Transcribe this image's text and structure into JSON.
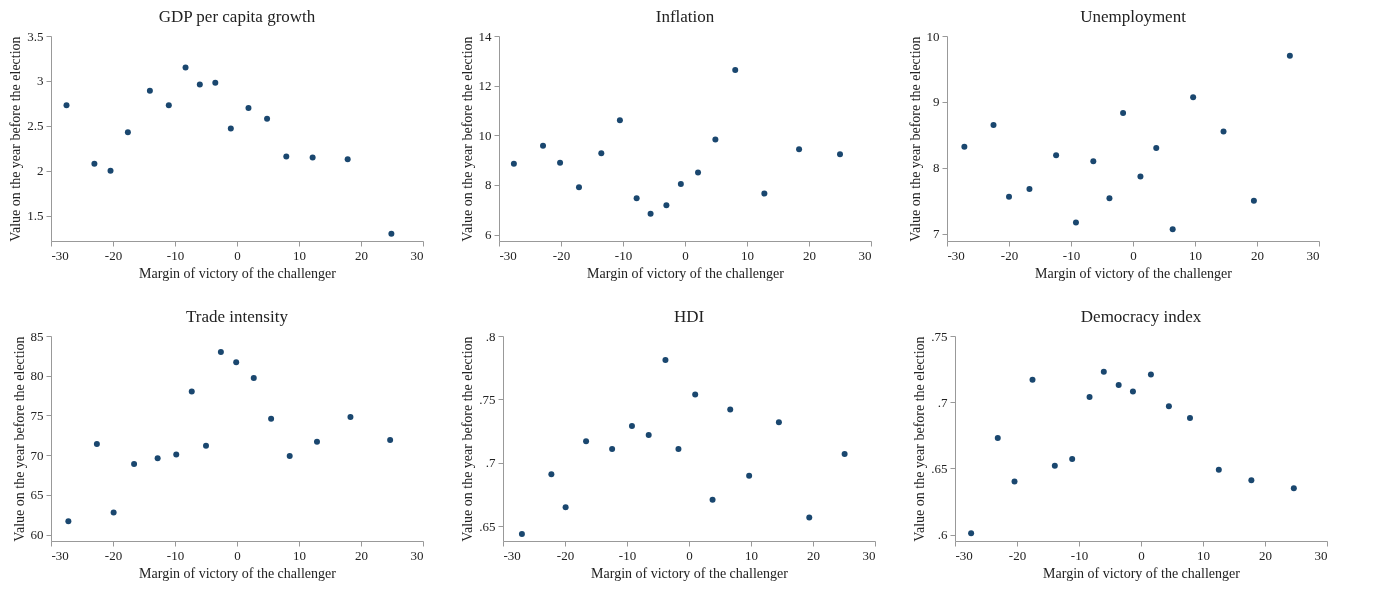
{
  "chart_data": [
    {
      "type": "scatter",
      "title": "GDP per capita growth",
      "xlabel": "Margin of victory of the challenger",
      "ylabel": "Value on the year before the election",
      "marker": "circle",
      "color": "#1a476f",
      "x": [
        -27.5,
        -23.0,
        -20.4,
        -17.6,
        -14.05,
        -11.0,
        -8.3,
        -6.0,
        -3.5,
        -1.0,
        1.85,
        4.85,
        7.95,
        12.2,
        17.85,
        24.9
      ],
      "values": [
        2.73,
        2.08,
        2.0,
        2.43,
        2.89,
        2.73,
        3.15,
        2.96,
        2.98,
        2.47,
        2.7,
        2.58,
        2.16,
        2.15,
        2.13,
        1.3
      ],
      "xlim": [
        -30,
        30
      ],
      "xticks": [
        -30,
        -20,
        -10,
        0,
        10,
        20,
        30
      ],
      "ylim": [
        1.22,
        3.5
      ],
      "yticks": [
        1.5,
        2,
        2.5,
        3,
        3.5
      ]
    },
    {
      "type": "scatter",
      "title": "Inflation",
      "xlabel": "Margin of victory of the challenger",
      "ylabel": "Value on the year before the election",
      "marker": "circle",
      "color": "#1a476f",
      "x": [
        -27.6,
        -22.9,
        -20.15,
        -17.1,
        -13.5,
        -10.5,
        -7.8,
        -5.55,
        -3.0,
        -0.67,
        2.1,
        4.9,
        8.1,
        12.8,
        18.4,
        25.0
      ],
      "values": [
        8.85,
        9.58,
        8.89,
        7.91,
        9.28,
        10.61,
        7.46,
        6.84,
        7.18,
        8.04,
        8.5,
        9.83,
        12.63,
        7.65,
        9.44,
        9.24
      ],
      "xlim": [
        -30,
        30
      ],
      "xticks": [
        -30,
        -20,
        -10,
        0,
        10,
        20,
        30
      ],
      "ylim": [
        5.74,
        14
      ],
      "yticks": [
        6,
        8,
        10,
        12,
        14
      ]
    },
    {
      "type": "scatter",
      "title": "Unemployment",
      "xlabel": "Margin of victory of the challenger",
      "ylabel": "Value on the year before the election",
      "marker": "circle",
      "color": "#1a476f",
      "x": [
        -27.2,
        -22.5,
        -20.0,
        -16.7,
        -12.4,
        -9.2,
        -6.4,
        -3.8,
        -1.6,
        1.2,
        3.75,
        6.4,
        9.7,
        14.6,
        19.5,
        25.3
      ],
      "values": [
        8.32,
        8.65,
        7.56,
        7.68,
        8.19,
        7.17,
        8.1,
        7.54,
        8.83,
        7.87,
        8.3,
        7.07,
        9.07,
        8.55,
        7.5,
        9.7
      ],
      "xlim": [
        -30,
        30
      ],
      "xticks": [
        -30,
        -20,
        -10,
        0,
        10,
        20,
        30
      ],
      "ylim": [
        6.89,
        10
      ],
      "yticks": [
        7,
        8,
        9,
        10
      ]
    },
    {
      "type": "scatter",
      "title": "Trade intensity",
      "xlabel": "Margin of victory of the challenger",
      "ylabel": "Value on the year before the election",
      "marker": "circle",
      "color": "#1a476f",
      "x": [
        -27.2,
        -22.6,
        -19.9,
        -16.6,
        -12.8,
        -9.8,
        -7.3,
        -5.0,
        -2.6,
        -0.13,
        2.7,
        5.5,
        8.5,
        12.9,
        18.3,
        24.7
      ],
      "values": [
        61.7,
        71.4,
        62.8,
        68.9,
        69.6,
        70.1,
        78.0,
        71.2,
        83.0,
        81.7,
        79.7,
        74.6,
        69.9,
        71.7,
        74.8,
        71.9
      ],
      "xlim": [
        -30,
        30
      ],
      "xticks": [
        -30,
        -20,
        -10,
        0,
        10,
        20,
        30
      ],
      "ylim": [
        59.2,
        85
      ],
      "yticks": [
        60,
        65,
        70,
        75,
        80,
        85
      ]
    },
    {
      "type": "scatter",
      "title": "HDI",
      "xlabel": "Margin of victory of the challenger",
      "ylabel": "Value on the year before the election",
      "marker": "circle",
      "color": "#1a476f",
      "x": [
        -26.95,
        -22.2,
        -19.9,
        -16.6,
        -12.4,
        -9.2,
        -6.5,
        -3.8,
        -1.7,
        1.0,
        3.8,
        6.65,
        9.7,
        14.5,
        19.4,
        25.1
      ],
      "values": [
        0.644,
        0.691,
        0.665,
        0.717,
        0.711,
        0.729,
        0.722,
        0.781,
        0.711,
        0.754,
        0.671,
        0.742,
        0.69,
        0.732,
        0.657,
        0.707
      ],
      "xlim": [
        -30,
        30
      ],
      "xticks": [
        -30,
        -20,
        -10,
        0,
        10,
        20,
        30
      ],
      "ylim": [
        0.6385,
        0.8
      ],
      "yticks": [
        {
          "value": 0.65,
          "label": ".65"
        },
        {
          "value": 0.7,
          "label": ".7"
        },
        {
          "value": 0.75,
          "label": ".75"
        },
        {
          "value": 0.8,
          "label": ".8"
        }
      ]
    },
    {
      "type": "scatter",
      "title": "Democracy index",
      "xlabel": "Margin of victory of the challenger",
      "ylabel": "Value on the year before the election",
      "marker": "circle",
      "color": "#1a476f",
      "x": [
        -27.4,
        -23.1,
        -20.4,
        -17.5,
        -13.9,
        -11.1,
        -8.3,
        -6.0,
        -3.6,
        -1.3,
        1.6,
        4.5,
        7.9,
        12.55,
        17.8,
        24.65
      ],
      "values": [
        0.601,
        0.673,
        0.64,
        0.717,
        0.652,
        0.657,
        0.704,
        0.723,
        0.713,
        0.708,
        0.721,
        0.697,
        0.688,
        0.649,
        0.641,
        0.635
      ],
      "xlim": [
        -30,
        30
      ],
      "xticks": [
        -30,
        -20,
        -10,
        0,
        10,
        20,
        30
      ],
      "ylim": [
        0.5951,
        0.75
      ],
      "yticks": [
        {
          "value": 0.6,
          "label": ".6"
        },
        {
          "value": 0.65,
          "label": ".65"
        },
        {
          "value": 0.7,
          "label": ".7"
        },
        {
          "value": 0.75,
          "label": ".75"
        }
      ]
    }
  ]
}
